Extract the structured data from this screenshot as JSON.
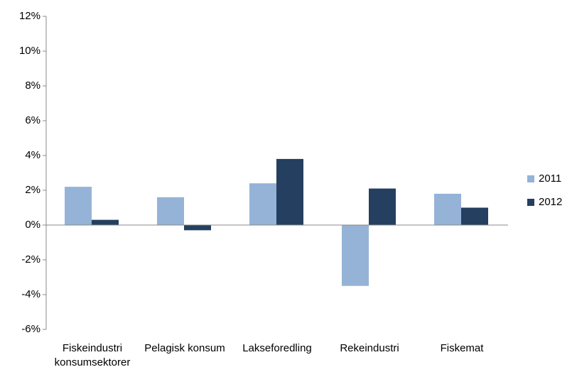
{
  "chart_data": {
    "type": "bar",
    "categories": [
      "Fiskeindustri konsumsektorer",
      "Pelagisk konsum",
      "Lakseforedling",
      "Rekeindustri",
      "Fiskemat"
    ],
    "series": [
      {
        "name": "2011",
        "color": "#95b3d7",
        "values": [
          2.2,
          1.6,
          2.4,
          -3.5,
          1.8
        ]
      },
      {
        "name": "2012",
        "color": "#243f60",
        "values": [
          0.3,
          -0.3,
          3.8,
          2.1,
          1.0
        ]
      }
    ],
    "ylim": [
      -6,
      12
    ],
    "yticks": [
      {
        "value": -6,
        "label": "-6%"
      },
      {
        "value": -4,
        "label": "-4%"
      },
      {
        "value": -2,
        "label": "-2%"
      },
      {
        "value": 0,
        "label": "0%"
      },
      {
        "value": 2,
        "label": "2%"
      },
      {
        "value": 4,
        "label": "4%"
      },
      {
        "value": 6,
        "label": "6%"
      },
      {
        "value": 8,
        "label": "8%"
      },
      {
        "value": 10,
        "label": "10%"
      },
      {
        "value": 12,
        "label": "12%"
      }
    ],
    "grid": false,
    "legend": "right"
  }
}
